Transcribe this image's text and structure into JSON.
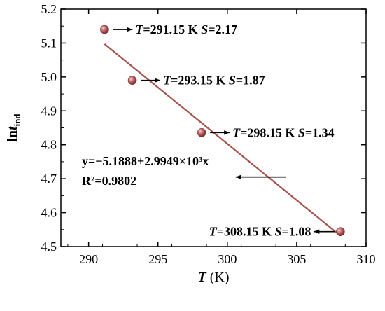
{
  "chart_data": {
    "type": "scatter",
    "xlabel": {
      "var": "T",
      "unit": " (K)"
    },
    "ylabel": {
      "prefix": "ln",
      "var": "t",
      "sub": "ind"
    },
    "xlim": [
      288,
      310
    ],
    "ylim": [
      4.5,
      5.2
    ],
    "xticks": [
      290,
      295,
      300,
      305,
      310
    ],
    "yticks": [
      4.5,
      4.6,
      4.7,
      4.8,
      4.9,
      5.0,
      5.1,
      5.2
    ],
    "grid": false,
    "points": [
      {
        "x": 291.15,
        "y": 5.14,
        "T": "291.15",
        "S": "2.17"
      },
      {
        "x": 293.15,
        "y": 4.99,
        "T": "293.15",
        "S": "1.87"
      },
      {
        "x": 298.15,
        "y": 4.836,
        "T": "298.15",
        "S": "1.34"
      },
      {
        "x": 308.15,
        "y": 4.544,
        "T": "308.15",
        "S": "1.08"
      }
    ],
    "fit": {
      "x_start": 291.15,
      "y_start": 5.097,
      "x_end": 308.15,
      "y_end": 4.532,
      "equation": "y=−5.1888+2.9949×10³x",
      "r2_label": "R²=0.9802"
    },
    "colors": {
      "point": "#b85a5a",
      "fit_line": "#a8514a",
      "axis": "#000000"
    }
  }
}
